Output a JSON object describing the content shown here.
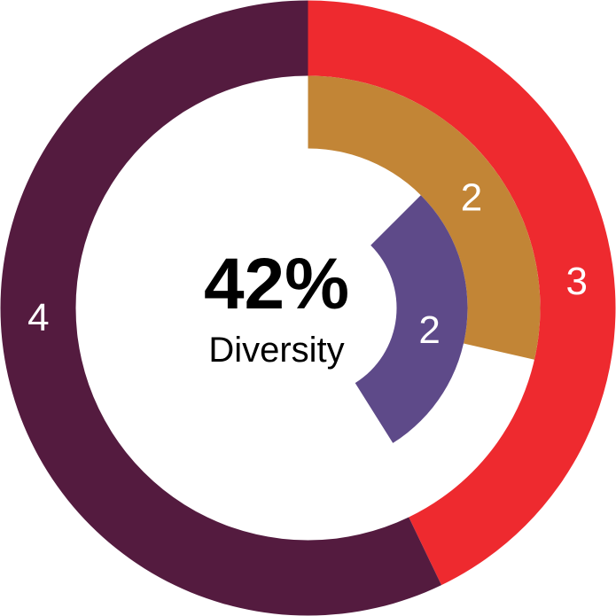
{
  "chart_data": {
    "type": "pie",
    "center_value": "42%",
    "center_caption": "Diversity",
    "rings": [
      {
        "ring": "outer",
        "segments": [
          {
            "label": "3",
            "value": 3,
            "color": "#ee2a2f"
          },
          {
            "label": "4",
            "value": 4,
            "color": "#541b3f"
          }
        ]
      },
      {
        "ring": "middle",
        "segments": [
          {
            "label": "2",
            "value": 2,
            "color": "#c28536"
          }
        ]
      },
      {
        "ring": "inner",
        "segments": [
          {
            "label": "2",
            "value": 2,
            "color": "#5e4a89"
          }
        ]
      }
    ]
  }
}
